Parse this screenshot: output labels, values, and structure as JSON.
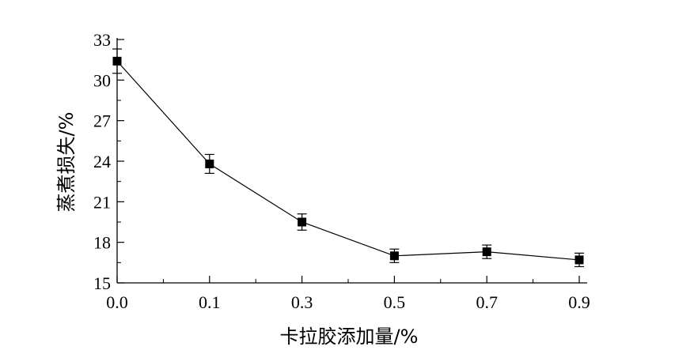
{
  "chart_data": {
    "type": "line",
    "title": "",
    "xlabel": "卡拉胶添加量/%",
    "ylabel": "蒸煮损失/%",
    "categories": [
      "0.0",
      "0.1",
      "0.3",
      "0.5",
      "0.7",
      "0.9"
    ],
    "series": [
      {
        "values": [
          31.4,
          23.8,
          19.5,
          17.0,
          17.3,
          16.7
        ],
        "errors": [
          0.9,
          0.7,
          0.6,
          0.5,
          0.5,
          0.5
        ]
      }
    ],
    "ylim": [
      15,
      33
    ],
    "yticks": [
      "15",
      "18",
      "21",
      "24",
      "27",
      "30",
      "33"
    ],
    "grid": false,
    "legend": "none",
    "colors": {
      "line": "#000000",
      "marker": "#000000"
    }
  }
}
